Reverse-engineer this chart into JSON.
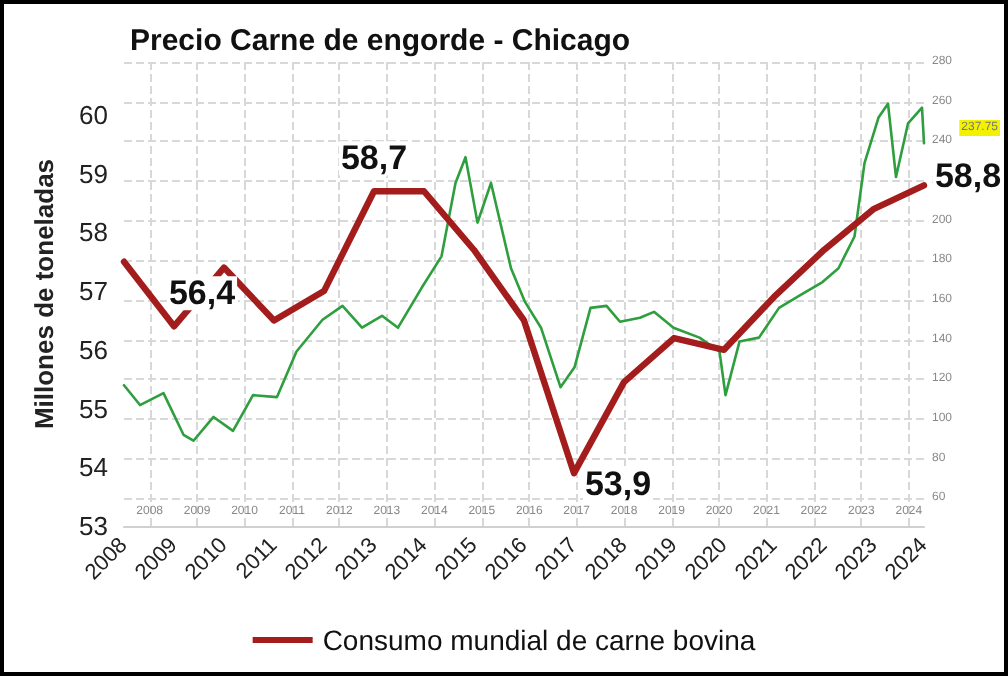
{
  "chart_data": {
    "type": "line",
    "title": "Precio Carne de engorde - Chicago",
    "ylabel": "Millones de toneladas",
    "x": [
      2008,
      2009,
      2010,
      2011,
      2012,
      2013,
      2014,
      2015,
      2016,
      2017,
      2018,
      2019,
      2020,
      2021,
      2022,
      2023,
      2024
    ],
    "xlim": [
      2008,
      2024
    ],
    "xticks": [
      2008,
      2009,
      2010,
      2011,
      2012,
      2013,
      2014,
      2015,
      2016,
      2017,
      2018,
      2019,
      2020,
      2021,
      2022,
      2023,
      2024
    ],
    "ylim": [
      53,
      60.9
    ],
    "yticks": [
      53,
      54,
      55,
      56,
      57,
      58,
      59,
      60
    ],
    "y2lim": [
      46,
      280
    ],
    "y2ticks": [
      60,
      80,
      100,
      120,
      140,
      160,
      180,
      200,
      220,
      240,
      260,
      280
    ],
    "x2lim": [
      2007.46,
      2024.32
    ],
    "x2ticks": [
      2008,
      2009,
      2010,
      2011,
      2012,
      2013,
      2014,
      2015,
      2016,
      2017,
      2018,
      2019,
      2020,
      2021,
      2022,
      2023,
      2024
    ],
    "series": [
      {
        "name": "Consumo mundial de carne bovina",
        "color": "#a31d1d",
        "values": [
          57.5,
          56.4,
          57.4,
          56.5,
          57.0,
          58.7,
          58.7,
          57.7,
          56.5,
          53.9,
          55.45,
          56.2,
          56.0,
          56.9,
          57.7,
          58.4,
          58.8
        ],
        "value_labels": [
          null,
          "56,4",
          null,
          null,
          null,
          "58,7",
          null,
          null,
          null,
          "53,9",
          null,
          null,
          null,
          null,
          null,
          null,
          "58,8"
        ]
      },
      {
        "type": "line",
        "axis": "y2",
        "color": "#2e9e3e",
        "x": [
          2008.0,
          2008.32,
          2008.79,
          2009.19,
          2009.39,
          2009.79,
          2010.18,
          2010.58,
          2011.06,
          2011.45,
          2011.97,
          2012.37,
          2012.76,
          2013.16,
          2013.48,
          2013.95,
          2014.35,
          2014.63,
          2014.83,
          2015.07,
          2015.34,
          2015.74,
          2016.02,
          2016.34,
          2016.73,
          2017.01,
          2017.33,
          2017.65,
          2017.92,
          2018.32,
          2018.6,
          2018.99,
          2019.51,
          2019.91,
          2020.03,
          2020.31,
          2020.7,
          2021.1,
          2021.5,
          2021.97,
          2022.29,
          2022.61,
          2022.81,
          2023.09,
          2023.28,
          2023.44,
          2023.68,
          2023.96,
          2024.0
        ],
        "values": [
          117,
          107,
          113,
          92,
          89,
          101,
          94,
          112,
          111,
          134,
          150,
          157,
          146,
          152,
          146,
          166,
          182,
          219,
          232,
          199,
          219,
          176,
          159,
          146,
          116,
          126,
          156,
          157,
          149,
          151,
          154,
          146,
          141,
          134,
          112,
          139,
          141,
          156,
          162,
          169,
          176,
          192,
          229,
          252,
          259,
          222,
          249,
          257,
          239
        ]
      }
    ],
    "annotations": [
      "237.75"
    ],
    "grid": true,
    "legend": "bottom"
  }
}
